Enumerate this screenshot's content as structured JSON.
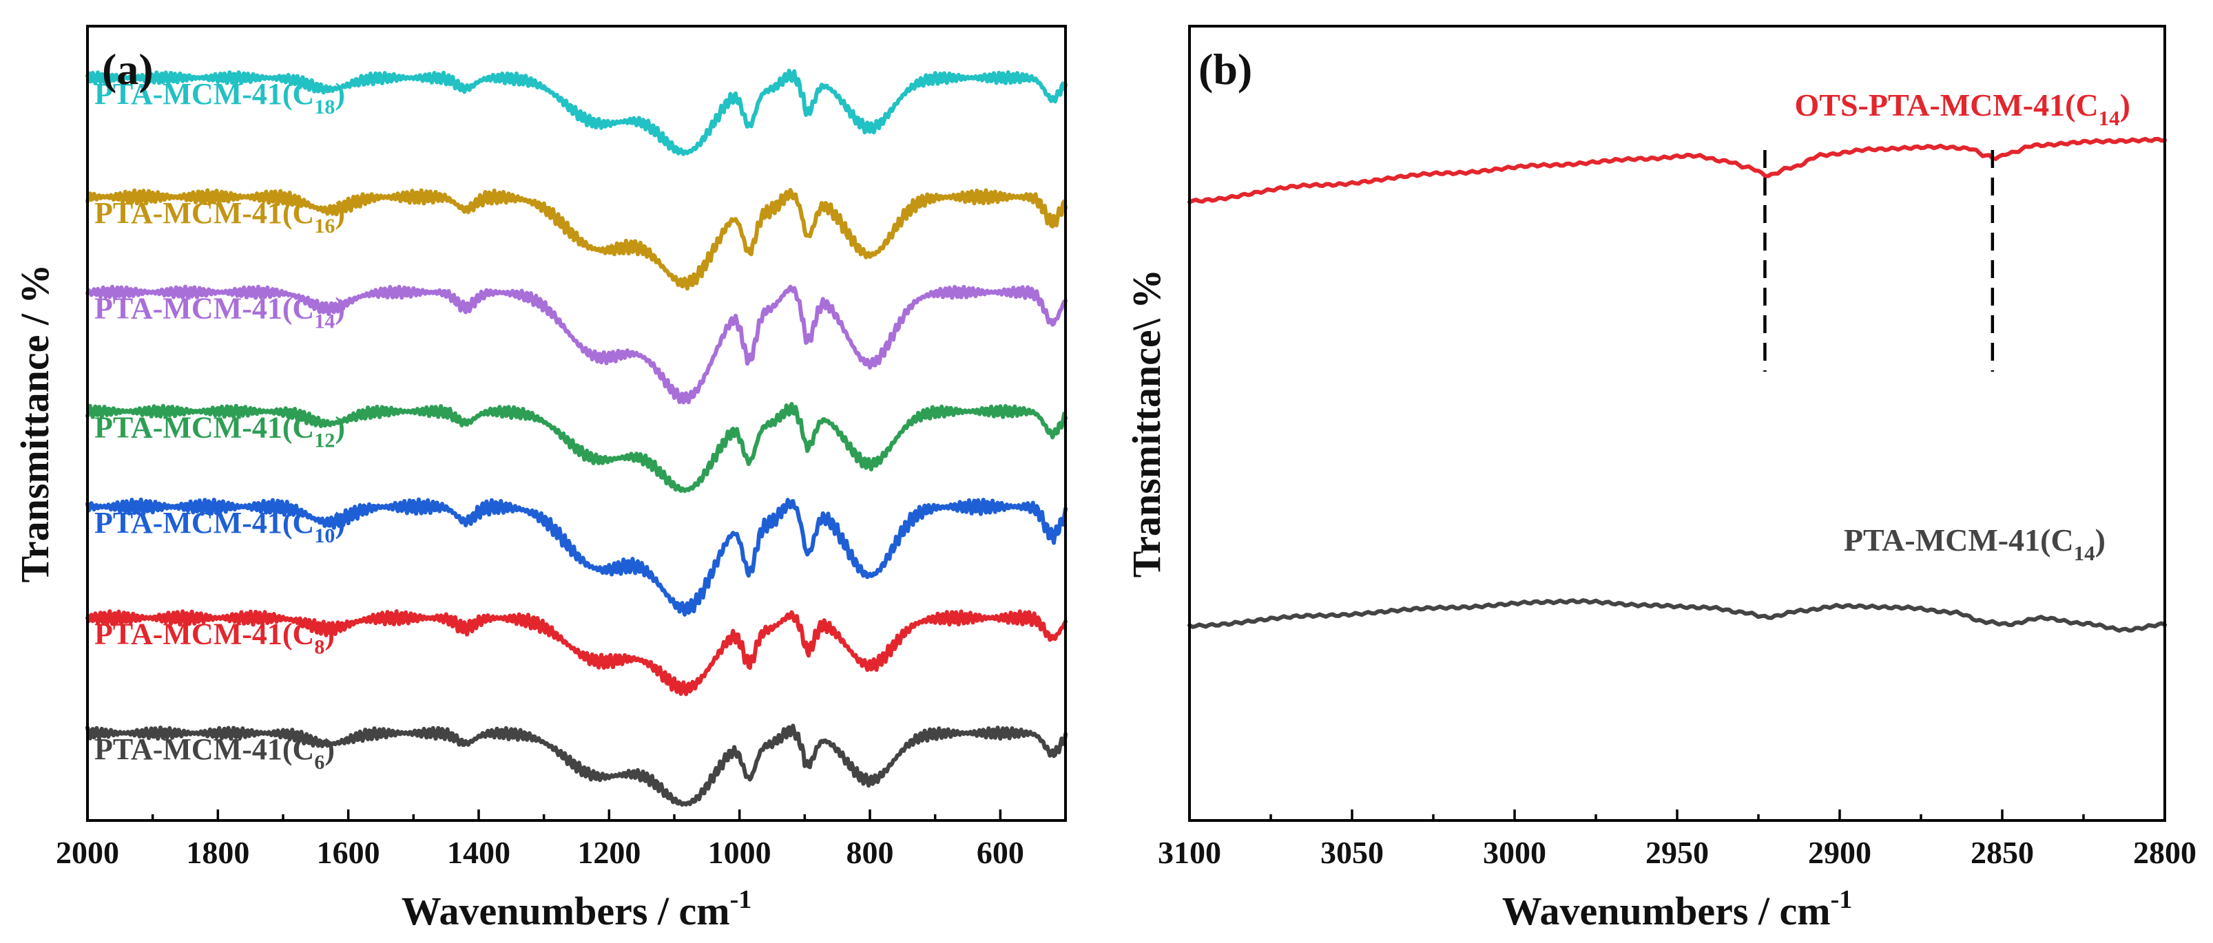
{
  "chart_data": [
    {
      "type": "line",
      "panel": "(a)",
      "xlabel_main": "Wavenumbers / cm",
      "xlabel_sup": "-1",
      "ylabel": "Transmittance / %",
      "xlim": [
        2000,
        500
      ],
      "x_ticks": [
        2000,
        1800,
        1600,
        1400,
        1200,
        1000,
        800,
        600
      ],
      "series": [
        {
          "name_main": "PTA-MCM-41(C",
          "name_sub": "18",
          "name_end": ")",
          "color": "#22c1c3",
          "offset": 0.935,
          "scale": 0.95,
          "noise": 1.0
        },
        {
          "name_main": "PTA-MCM-41(C",
          "name_sub": "16",
          "name_end": ")",
          "color": "#c39513",
          "offset": 0.785,
          "scale": 1.1,
          "noise": 1.2
        },
        {
          "name_main": "PTA-MCM-41(C",
          "name_sub": "14",
          "name_end": ")",
          "color": "#a86fd9",
          "offset": 0.665,
          "scale": 1.35,
          "noise": 1.0
        },
        {
          "name_main": "PTA-MCM-41(C",
          "name_sub": "12",
          "name_end": ")",
          "color": "#2e9e55",
          "offset": 0.515,
          "scale": 1.0,
          "noise": 1.0
        },
        {
          "name_main": "PTA-MCM-41(C",
          "name_sub": "10",
          "name_end": ")",
          "color": "#1f5fd6",
          "offset": 0.395,
          "scale": 1.3,
          "noise": 1.3
        },
        {
          "name_main": "PTA-MCM-41(C",
          "name_sub": "8",
          "name_end": ")",
          "color": "#e3262d",
          "offset": 0.255,
          "scale": 0.9,
          "noise": 1.2
        },
        {
          "name_main": "PTA-MCM-41(C",
          "name_sub": "6",
          "name_end": ")",
          "color": "#444444",
          "offset": 0.11,
          "scale": 0.9,
          "noise": 1.0
        }
      ]
    },
    {
      "type": "line",
      "panel": "(b)",
      "xlabel_main": "Wavenumbers / cm",
      "xlabel_sup": "-1",
      "ylabel": "Transmittance\\ %",
      "xlim": [
        3100,
        2800
      ],
      "x_ticks": [
        3100,
        3050,
        3000,
        2950,
        2900,
        2850,
        2800
      ],
      "peak_markers": [
        2923,
        2853
      ],
      "series": [
        {
          "name_main": "OTS-PTA-MCM-41(C",
          "name_sub": "14",
          "name_end": ")",
          "color": "#e3262d",
          "points": [
            [
              3100,
              0.78
            ],
            [
              3060,
              0.8
            ],
            [
              3020,
              0.815
            ],
            [
              2990,
              0.825
            ],
            [
              2960,
              0.833
            ],
            [
              2945,
              0.837
            ],
            [
              2935,
              0.83
            ],
            [
              2928,
              0.822
            ],
            [
              2922,
              0.812
            ],
            [
              2915,
              0.822
            ],
            [
              2905,
              0.838
            ],
            [
              2890,
              0.845
            ],
            [
              2870,
              0.848
            ],
            [
              2860,
              0.846
            ],
            [
              2855,
              0.837
            ],
            [
              2852,
              0.834
            ],
            [
              2848,
              0.84
            ],
            [
              2840,
              0.85
            ],
            [
              2820,
              0.855
            ],
            [
              2800,
              0.857
            ]
          ]
        },
        {
          "name_main": "PTA-MCM-41(C",
          "name_sub": "14",
          "name_end": ")",
          "color": "#444444",
          "points": [
            [
              3100,
              0.245
            ],
            [
              3060,
              0.258
            ],
            [
              3020,
              0.268
            ],
            [
              2990,
              0.275
            ],
            [
              2980,
              0.276
            ],
            [
              2960,
              0.271
            ],
            [
              2940,
              0.268
            ],
            [
              2930,
              0.262
            ],
            [
              2922,
              0.256
            ],
            [
              2912,
              0.264
            ],
            [
              2900,
              0.27
            ],
            [
              2880,
              0.268
            ],
            [
              2865,
              0.262
            ],
            [
              2855,
              0.25
            ],
            [
              2848,
              0.247
            ],
            [
              2838,
              0.255
            ],
            [
              2825,
              0.248
            ],
            [
              2812,
              0.24
            ],
            [
              2800,
              0.247
            ]
          ]
        }
      ]
    }
  ]
}
